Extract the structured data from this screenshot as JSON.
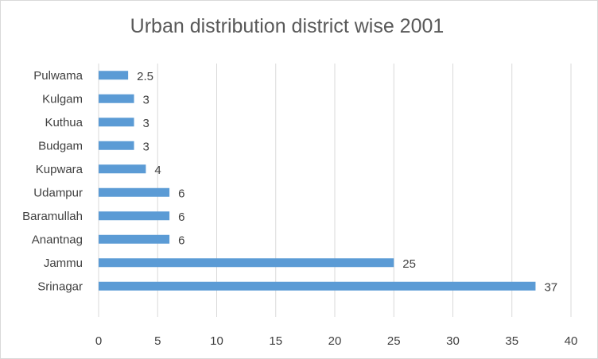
{
  "chart_data": {
    "type": "bar",
    "orientation": "horizontal",
    "title": "Urban distribution district wise 2001",
    "categories": [
      "Pulwama",
      "Kulgam",
      "Kuthua",
      "Budgam",
      "Kupwara",
      "Udampur",
      "Baramullah",
      "Anantnag",
      "Jammu",
      "Srinagar"
    ],
    "values": [
      2.5,
      3,
      3,
      3,
      4,
      6,
      6,
      6,
      25,
      37
    ],
    "data_labels": [
      "2.5",
      "3",
      "3",
      "3",
      "4",
      "6",
      "6",
      "6",
      "25",
      "37"
    ],
    "xlim": [
      0,
      40
    ],
    "x_ticks": [
      0,
      5,
      10,
      15,
      20,
      25,
      30,
      35,
      40
    ],
    "xlabel": "",
    "ylabel": "",
    "grid": "vertical",
    "bar_color": "#5b9bd5",
    "grid_color": "#d9d9d9",
    "legend": "none"
  }
}
